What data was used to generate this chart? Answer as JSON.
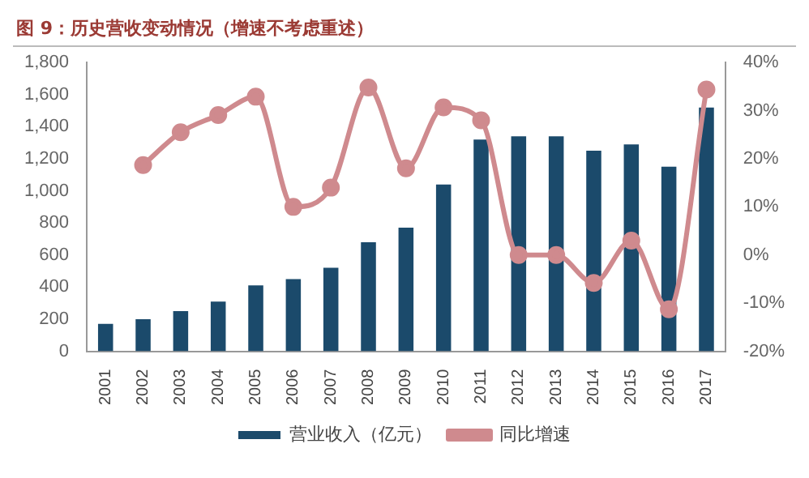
{
  "chart_data": {
    "type": "bar",
    "title": "图 9：历史营收变动情况（增速不考虑重述）",
    "categories": [
      "2001",
      "2002",
      "2003",
      "2004",
      "2005",
      "2006",
      "2007",
      "2008",
      "2009",
      "2010",
      "2011",
      "2012",
      "2013",
      "2014",
      "2015",
      "2016",
      "2017"
    ],
    "series": [
      {
        "name": "营业收入（亿元）",
        "color": "#1b4a6b",
        "values": [
          170,
          200,
          250,
          310,
          410,
          450,
          520,
          680,
          770,
          1040,
          1320,
          1340,
          1340,
          1250,
          1290,
          1150,
          1520
        ]
      },
      {
        "name": "同比增速",
        "type": "line",
        "axis": "y2",
        "color": "#cf8a8e",
        "values": [
          null,
          18.7,
          25.5,
          29.1,
          32.9,
          10,
          14,
          34.8,
          18,
          30.7,
          28,
          0,
          0,
          -5.8,
          3,
          -11.3,
          34.4
        ]
      }
    ],
    "ylim": [
      0,
      1800
    ],
    "yticks": [
      0,
      200,
      400,
      600,
      800,
      {
        "value": 1000,
        "label": "1,000"
      },
      {
        "value": 1200,
        "label": "1,200"
      },
      {
        "value": 1400,
        "label": "1,400"
      },
      {
        "value": 1600,
        "label": "1,600"
      },
      {
        "value": 1800,
        "label": "1,800"
      }
    ],
    "y2lim": [
      -20,
      40
    ],
    "y2ticks": [
      {
        "value": -20,
        "label": "-20%"
      },
      {
        "value": -10,
        "label": "-10%"
      },
      {
        "value": 0,
        "label": "0%"
      },
      {
        "value": 10,
        "label": "10%"
      },
      {
        "value": 20,
        "label": "20%"
      },
      {
        "value": 30,
        "label": "30%"
      },
      {
        "value": 40,
        "label": "40%"
      }
    ],
    "legend": "bottom",
    "grid": false,
    "marker": "circle",
    "line_style": "solid"
  }
}
